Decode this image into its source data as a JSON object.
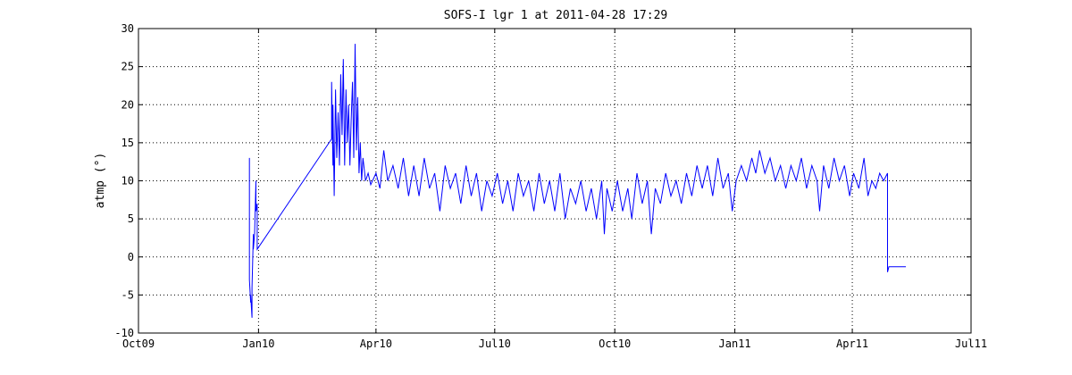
{
  "chart_data": {
    "type": "line",
    "title": "SOFS-I lgr 1 at 2011-04-28 17:29",
    "xlabel": "",
    "ylabel": "atmp (°)",
    "xlim": [
      "2009-10-01",
      "2011-07-01"
    ],
    "ylim": [
      -10,
      30
    ],
    "grid": true,
    "line_color": "#0000ff",
    "x_ticks": [
      {
        "label": "Oct09",
        "date": "2009-10-01"
      },
      {
        "label": "Jan10",
        "date": "2010-01-01"
      },
      {
        "label": "Apr10",
        "date": "2010-04-01"
      },
      {
        "label": "Jul10",
        "date": "2010-07-01"
      },
      {
        "label": "Oct10",
        "date": "2010-10-01"
      },
      {
        "label": "Jan11",
        "date": "2011-01-01"
      },
      {
        "label": "Apr11",
        "date": "2011-04-01"
      },
      {
        "label": "Jul11",
        "date": "2011-07-01"
      }
    ],
    "y_ticks": [
      -10,
      -5,
      0,
      5,
      10,
      15,
      20,
      25,
      30
    ],
    "series": [
      {
        "name": "",
        "points": [
          [
            "2009-12-25",
            0
          ],
          [
            "2009-12-25",
            13
          ],
          [
            "2009-12-25",
            -3
          ],
          [
            "2009-12-26",
            -6
          ],
          [
            "2009-12-26",
            -5
          ],
          [
            "2009-12-27",
            -8
          ],
          [
            "2009-12-27",
            -4
          ],
          [
            "2009-12-28",
            3
          ],
          [
            "2009-12-28",
            1
          ],
          [
            "2009-12-29",
            3
          ],
          [
            "2009-12-30",
            10
          ],
          [
            "2009-12-30",
            6
          ],
          [
            "2009-12-31",
            7
          ],
          [
            "2009-12-31",
            1
          ],
          [
            "2010-02-26",
            15.5
          ],
          [
            "2010-02-26",
            23
          ],
          [
            "2010-02-27",
            12
          ],
          [
            "2010-02-27",
            20
          ],
          [
            "2010-02-28",
            8
          ],
          [
            "2010-03-01",
            22
          ],
          [
            "2010-03-02",
            13
          ],
          [
            "2010-03-03",
            19
          ],
          [
            "2010-03-04",
            12
          ],
          [
            "2010-03-05",
            24
          ],
          [
            "2010-03-06",
            16
          ],
          [
            "2010-03-07",
            26
          ],
          [
            "2010-03-08",
            12
          ],
          [
            "2010-03-09",
            22
          ],
          [
            "2010-03-10",
            15
          ],
          [
            "2010-03-11",
            20
          ],
          [
            "2010-03-12",
            12
          ],
          [
            "2010-03-13",
            18
          ],
          [
            "2010-03-14",
            23
          ],
          [
            "2010-03-15",
            13
          ],
          [
            "2010-03-16",
            28
          ],
          [
            "2010-03-17",
            14
          ],
          [
            "2010-03-18",
            21
          ],
          [
            "2010-03-19",
            11
          ],
          [
            "2010-03-20",
            15
          ],
          [
            "2010-03-21",
            10
          ],
          [
            "2010-03-22",
            13
          ],
          [
            "2010-03-24",
            10
          ],
          [
            "2010-03-26",
            11
          ],
          [
            "2010-03-28",
            9.5
          ],
          [
            "2010-04-01",
            11
          ],
          [
            "2010-04-04",
            9
          ],
          [
            "2010-04-07",
            14
          ],
          [
            "2010-04-10",
            10
          ],
          [
            "2010-04-14",
            12
          ],
          [
            "2010-04-18",
            9
          ],
          [
            "2010-04-22",
            13
          ],
          [
            "2010-04-26",
            8
          ],
          [
            "2010-04-30",
            12
          ],
          [
            "2010-05-04",
            8
          ],
          [
            "2010-05-08",
            13
          ],
          [
            "2010-05-12",
            9
          ],
          [
            "2010-05-16",
            11
          ],
          [
            "2010-05-20",
            6
          ],
          [
            "2010-05-24",
            12
          ],
          [
            "2010-05-28",
            9
          ],
          [
            "2010-06-01",
            11
          ],
          [
            "2010-06-05",
            7
          ],
          [
            "2010-06-09",
            12
          ],
          [
            "2010-06-13",
            8
          ],
          [
            "2010-06-17",
            11
          ],
          [
            "2010-06-21",
            6
          ],
          [
            "2010-06-25",
            10
          ],
          [
            "2010-06-29",
            8
          ],
          [
            "2010-07-03",
            11
          ],
          [
            "2010-07-07",
            7
          ],
          [
            "2010-07-11",
            10
          ],
          [
            "2010-07-15",
            6
          ],
          [
            "2010-07-19",
            11
          ],
          [
            "2010-07-23",
            8
          ],
          [
            "2010-07-27",
            10
          ],
          [
            "2010-07-31",
            6
          ],
          [
            "2010-08-04",
            11
          ],
          [
            "2010-08-08",
            7
          ],
          [
            "2010-08-12",
            10
          ],
          [
            "2010-08-16",
            6
          ],
          [
            "2010-08-20",
            11
          ],
          [
            "2010-08-24",
            5
          ],
          [
            "2010-08-28",
            9
          ],
          [
            "2010-09-01",
            7
          ],
          [
            "2010-09-05",
            10
          ],
          [
            "2010-09-09",
            6
          ],
          [
            "2010-09-13",
            9
          ],
          [
            "2010-09-17",
            5
          ],
          [
            "2010-09-21",
            10
          ],
          [
            "2010-09-23",
            3
          ],
          [
            "2010-09-25",
            9
          ],
          [
            "2010-09-29",
            6
          ],
          [
            "2010-10-03",
            10
          ],
          [
            "2010-10-07",
            6
          ],
          [
            "2010-10-11",
            9
          ],
          [
            "2010-10-14",
            5
          ],
          [
            "2010-10-18",
            11
          ],
          [
            "2010-10-22",
            7
          ],
          [
            "2010-10-26",
            10
          ],
          [
            "2010-10-29",
            3
          ],
          [
            "2010-11-01",
            9
          ],
          [
            "2010-11-05",
            7
          ],
          [
            "2010-11-09",
            11
          ],
          [
            "2010-11-13",
            8
          ],
          [
            "2010-11-17",
            10
          ],
          [
            "2010-11-21",
            7
          ],
          [
            "2010-11-25",
            11
          ],
          [
            "2010-11-29",
            8
          ],
          [
            "2010-12-03",
            12
          ],
          [
            "2010-12-07",
            9
          ],
          [
            "2010-12-11",
            12
          ],
          [
            "2010-12-15",
            8
          ],
          [
            "2010-12-19",
            13
          ],
          [
            "2010-12-23",
            9
          ],
          [
            "2010-12-27",
            11
          ],
          [
            "2010-12-30",
            6
          ],
          [
            "2011-01-02",
            10
          ],
          [
            "2011-01-06",
            12
          ],
          [
            "2011-01-10",
            10
          ],
          [
            "2011-01-14",
            13
          ],
          [
            "2011-01-17",
            11
          ],
          [
            "2011-01-20",
            14
          ],
          [
            "2011-01-24",
            11
          ],
          [
            "2011-01-28",
            13
          ],
          [
            "2011-02-01",
            10
          ],
          [
            "2011-02-05",
            12
          ],
          [
            "2011-02-09",
            9
          ],
          [
            "2011-02-13",
            12
          ],
          [
            "2011-02-17",
            10
          ],
          [
            "2011-02-21",
            13
          ],
          [
            "2011-02-25",
            9
          ],
          [
            "2011-03-01",
            12
          ],
          [
            "2011-03-05",
            10
          ],
          [
            "2011-03-07",
            6
          ],
          [
            "2011-03-10",
            12
          ],
          [
            "2011-03-14",
            9
          ],
          [
            "2011-03-18",
            13
          ],
          [
            "2011-03-22",
            10
          ],
          [
            "2011-03-26",
            12
          ],
          [
            "2011-03-30",
            8
          ],
          [
            "2011-04-02",
            11
          ],
          [
            "2011-04-06",
            9
          ],
          [
            "2011-04-10",
            13
          ],
          [
            "2011-04-13",
            8
          ],
          [
            "2011-04-16",
            10
          ],
          [
            "2011-04-19",
            9
          ],
          [
            "2011-04-22",
            11
          ],
          [
            "2011-04-25",
            10
          ],
          [
            "2011-04-28",
            11
          ],
          [
            "2011-04-28",
            -2
          ],
          [
            "2011-04-29",
            -1.3
          ],
          [
            "2011-05-12",
            -1.3
          ]
        ]
      }
    ]
  }
}
